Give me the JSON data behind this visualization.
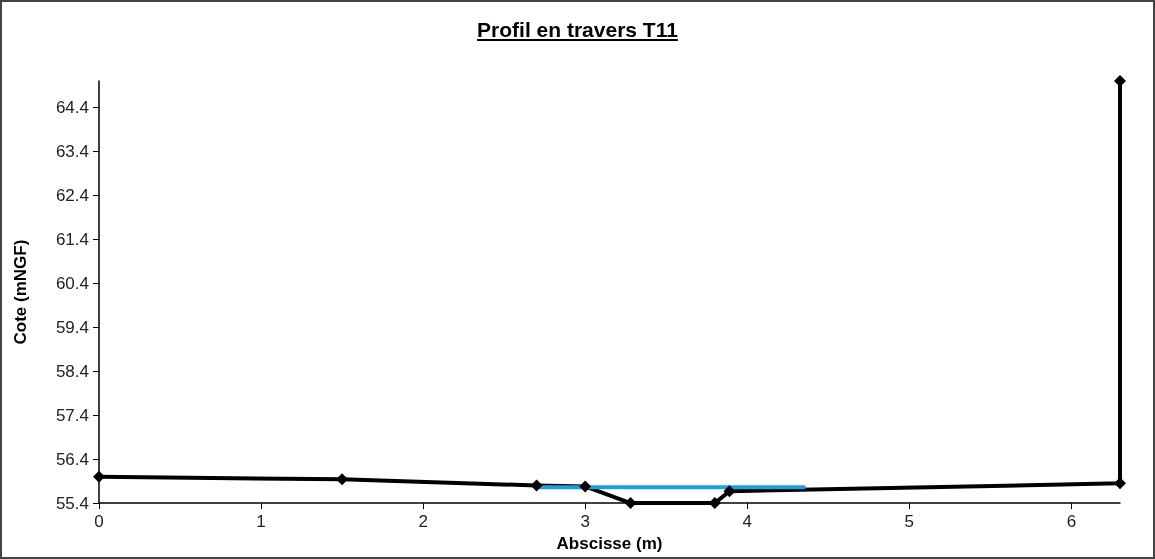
{
  "chart_data": {
    "type": "line",
    "title": "Profil en travers T11",
    "xlabel": "Abscisse (m)",
    "ylabel": "Cote (mNGF)",
    "series": [
      {
        "color": "#000000",
        "marker": "diamond",
        "x": [
          0,
          1.5,
          2.7,
          3.0,
          3.28,
          3.8,
          3.89,
          6.3,
          6.3
        ],
        "values": [
          56.0,
          55.94,
          55.8,
          55.78,
          55.4,
          55.4,
          55.67,
          55.85,
          65.0
        ]
      },
      {
        "color": "#1ea0dc",
        "marker": "none",
        "x": [
          2.7,
          4.35
        ],
        "values": [
          55.76,
          55.76
        ]
      }
    ],
    "xlim": [
      0,
      6.3
    ],
    "xticks": [
      0,
      1,
      2,
      3,
      4,
      5,
      6
    ],
    "ylim": [
      55.4,
      65.0
    ],
    "yticks": [
      55.4,
      56.4,
      57.4,
      58.4,
      59.4,
      60.4,
      61.4,
      62.4,
      63.4,
      64.4
    ],
    "grid": false,
    "line_style": "solid"
  }
}
